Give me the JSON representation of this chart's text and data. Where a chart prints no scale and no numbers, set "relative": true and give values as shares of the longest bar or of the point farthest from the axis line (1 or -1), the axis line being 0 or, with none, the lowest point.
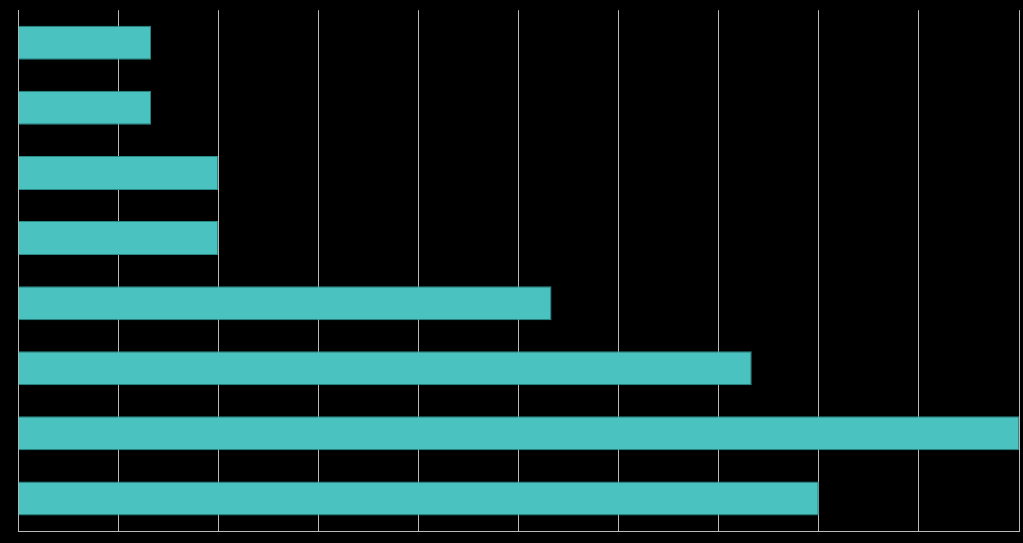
{
  "chart_data": {
    "type": "bar",
    "orientation": "horizontal",
    "relative": true,
    "grid": "x",
    "legend": false,
    "categories": [
      null,
      null,
      null,
      null,
      null,
      null,
      null,
      null
    ],
    "values": [
      0.133,
      0.133,
      0.2,
      0.2,
      0.533,
      0.733,
      1,
      0.8
    ],
    "color": "#4ac3c0"
  }
}
